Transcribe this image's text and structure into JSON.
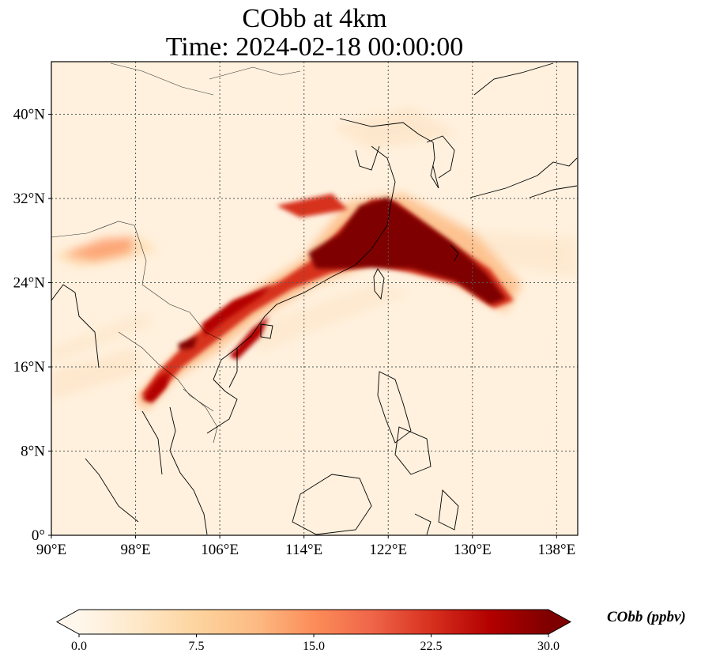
{
  "title": {
    "line1": "CObb at 4km",
    "line2": "Time: 2024-02-18 00:00:00"
  },
  "map": {
    "projection": "PlateCarree",
    "extent": {
      "lon": [
        90,
        140
      ],
      "lat": [
        0,
        45
      ]
    },
    "lon_ticks": [
      {
        "value": 90,
        "label": "90°E"
      },
      {
        "value": 98,
        "label": "98°E"
      },
      {
        "value": 106,
        "label": "106°E"
      },
      {
        "value": 114,
        "label": "114°E"
      },
      {
        "value": 122,
        "label": "122°E"
      },
      {
        "value": 130,
        "label": "130°E"
      },
      {
        "value": 138,
        "label": "138°E"
      }
    ],
    "lat_ticks": [
      {
        "value": 0,
        "label": "0°"
      },
      {
        "value": 8,
        "label": "8°N"
      },
      {
        "value": 16,
        "label": "16°N"
      },
      {
        "value": 24,
        "label": "24°N"
      },
      {
        "value": 32,
        "label": "32°N"
      },
      {
        "value": 40,
        "label": "40°N"
      }
    ],
    "gridlines": "dotted",
    "plume_axis": [
      [
        100,
        14.5
      ],
      [
        104,
        18.5
      ],
      [
        108,
        21.5
      ],
      [
        112,
        23.5
      ],
      [
        116,
        26.5
      ],
      [
        120,
        28.5
      ],
      [
        124,
        27.5
      ],
      [
        128,
        25.5
      ],
      [
        132,
        23.5
      ]
    ]
  },
  "colorbar": {
    "label": "CObb (ppbv)",
    "cmap": "OrRd",
    "ticks": [
      "0.0",
      "7.5",
      "15.0",
      "22.5",
      "30.0"
    ],
    "range": [
      0,
      30
    ],
    "extend": "both",
    "colors": [
      "#fff7ec",
      "#fee8c8",
      "#fdd49e",
      "#fdbb84",
      "#fc8d59",
      "#ef6548",
      "#d7301f",
      "#b30000",
      "#7f0000"
    ]
  }
}
